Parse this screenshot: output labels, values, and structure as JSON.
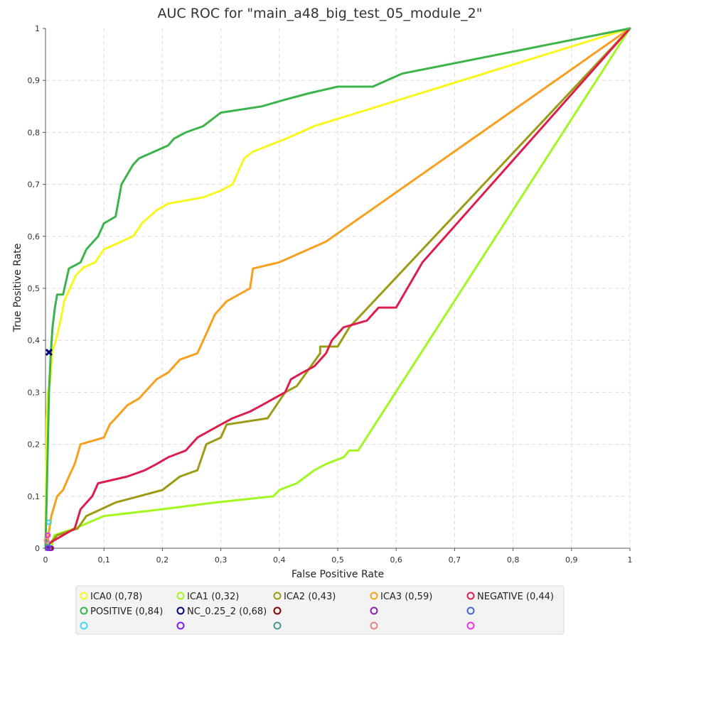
{
  "chart_data": {
    "type": "line",
    "title": "AUC ROC for \"main_a48_big_test_05_module_2\"",
    "xlabel": "False Positive Rate",
    "ylabel": "True Positive Rate",
    "xlim": [
      0,
      1
    ],
    "ylim": [
      0,
      1
    ],
    "grid": true,
    "legend_position": "bottom",
    "x_ticks": [
      "0",
      "0,1",
      "0,2",
      "0,3",
      "0,4",
      "0,5",
      "0,6",
      "0,7",
      "0,8",
      "0,9",
      "1"
    ],
    "y_ticks": [
      "0",
      "0,1",
      "0,2",
      "0,3",
      "0,4",
      "0,5",
      "0,6",
      "0,7",
      "0,8",
      "0,9",
      "1"
    ],
    "series": [
      {
        "name": "ICA0 (0,78)",
        "color": "#f7f71e",
        "points": [
          [
            0,
            0
          ],
          [
            0.002,
            0.25
          ],
          [
            0.004,
            0.3
          ],
          [
            0.008,
            0.32
          ],
          [
            0.012,
            0.38
          ],
          [
            0.018,
            0.4
          ],
          [
            0.022,
            0.42
          ],
          [
            0.028,
            0.45
          ],
          [
            0.032,
            0.475
          ],
          [
            0.042,
            0.5
          ],
          [
            0.052,
            0.525
          ],
          [
            0.065,
            0.54
          ],
          [
            0.085,
            0.55
          ],
          [
            0.1,
            0.575
          ],
          [
            0.15,
            0.6
          ],
          [
            0.165,
            0.625
          ],
          [
            0.19,
            0.65
          ],
          [
            0.21,
            0.663
          ],
          [
            0.27,
            0.675
          ],
          [
            0.3,
            0.688
          ],
          [
            0.32,
            0.7
          ],
          [
            0.34,
            0.75
          ],
          [
            0.355,
            0.763
          ],
          [
            0.41,
            0.787
          ],
          [
            0.46,
            0.812
          ],
          [
            1,
            1
          ]
        ]
      },
      {
        "name": "ICA1 (0,32)",
        "color": "#a2f71e",
        "points": [
          [
            0,
            0
          ],
          [
            0.01,
            0.0
          ],
          [
            0.015,
            0.025
          ],
          [
            0.05,
            0.038
          ],
          [
            0.1,
            0.062
          ],
          [
            0.2,
            0.075
          ],
          [
            0.29,
            0.088
          ],
          [
            0.39,
            0.1
          ],
          [
            0.4,
            0.112
          ],
          [
            0.43,
            0.125
          ],
          [
            0.46,
            0.15
          ],
          [
            0.48,
            0.162
          ],
          [
            0.51,
            0.175
          ],
          [
            0.52,
            0.188
          ],
          [
            0.535,
            0.188
          ],
          [
            1,
            1
          ]
        ]
      },
      {
        "name": "ICA2 (0,43)",
        "color": "#9c9c14",
        "points": [
          [
            0,
            0
          ],
          [
            0.02,
            0.025
          ],
          [
            0.055,
            0.038
          ],
          [
            0.07,
            0.062
          ],
          [
            0.12,
            0.088
          ],
          [
            0.16,
            0.1
          ],
          [
            0.2,
            0.112
          ],
          [
            0.23,
            0.138
          ],
          [
            0.26,
            0.15
          ],
          [
            0.275,
            0.2
          ],
          [
            0.3,
            0.213
          ],
          [
            0.31,
            0.238
          ],
          [
            0.38,
            0.25
          ],
          [
            0.41,
            0.3
          ],
          [
            0.43,
            0.312
          ],
          [
            0.47,
            0.375
          ],
          [
            0.47,
            0.388
          ],
          [
            0.5,
            0.388
          ],
          [
            0.52,
            0.425
          ],
          [
            1,
            1
          ]
        ]
      },
      {
        "name": "ICA3 (0,59)",
        "color": "#f7a01e",
        "points": [
          [
            0,
            0
          ],
          [
            0.005,
            0.025
          ],
          [
            0.01,
            0.062
          ],
          [
            0.02,
            0.1
          ],
          [
            0.03,
            0.112
          ],
          [
            0.04,
            0.138
          ],
          [
            0.05,
            0.162
          ],
          [
            0.06,
            0.2
          ],
          [
            0.1,
            0.213
          ],
          [
            0.11,
            0.238
          ],
          [
            0.12,
            0.25
          ],
          [
            0.14,
            0.275
          ],
          [
            0.16,
            0.288
          ],
          [
            0.19,
            0.325
          ],
          [
            0.21,
            0.338
          ],
          [
            0.23,
            0.363
          ],
          [
            0.26,
            0.375
          ],
          [
            0.28,
            0.425
          ],
          [
            0.29,
            0.45
          ],
          [
            0.31,
            0.475
          ],
          [
            0.35,
            0.5
          ],
          [
            0.355,
            0.538
          ],
          [
            0.4,
            0.55
          ],
          [
            0.45,
            0.575
          ],
          [
            0.48,
            0.59
          ],
          [
            1,
            1
          ]
        ]
      },
      {
        "name": "NEGATIVE (0,44)",
        "color": "#dc1e4e",
        "points": [
          [
            0,
            0
          ],
          [
            0.01,
            0.012
          ],
          [
            0.03,
            0.025
          ],
          [
            0.05,
            0.038
          ],
          [
            0.06,
            0.075
          ],
          [
            0.08,
            0.1
          ],
          [
            0.09,
            0.125
          ],
          [
            0.14,
            0.138
          ],
          [
            0.17,
            0.15
          ],
          [
            0.19,
            0.162
          ],
          [
            0.21,
            0.175
          ],
          [
            0.24,
            0.188
          ],
          [
            0.26,
            0.213
          ],
          [
            0.3,
            0.238
          ],
          [
            0.32,
            0.25
          ],
          [
            0.35,
            0.263
          ],
          [
            0.37,
            0.275
          ],
          [
            0.41,
            0.3
          ],
          [
            0.42,
            0.325
          ],
          [
            0.44,
            0.338
          ],
          [
            0.46,
            0.35
          ],
          [
            0.48,
            0.375
          ],
          [
            0.49,
            0.4
          ],
          [
            0.51,
            0.425
          ],
          [
            0.55,
            0.438
          ],
          [
            0.57,
            0.463
          ],
          [
            0.6,
            0.463
          ],
          [
            0.645,
            0.55
          ],
          [
            1,
            1
          ]
        ]
      },
      {
        "name": "POSITIVE (0,84)",
        "color": "#3cb44b",
        "points": [
          [
            0,
            0
          ],
          [
            0.003,
            0.15
          ],
          [
            0.006,
            0.3
          ],
          [
            0.009,
            0.375
          ],
          [
            0.012,
            0.425
          ],
          [
            0.016,
            0.463
          ],
          [
            0.02,
            0.488
          ],
          [
            0.03,
            0.488
          ],
          [
            0.04,
            0.538
          ],
          [
            0.06,
            0.55
          ],
          [
            0.07,
            0.575
          ],
          [
            0.09,
            0.6
          ],
          [
            0.1,
            0.625
          ],
          [
            0.12,
            0.638
          ],
          [
            0.13,
            0.7
          ],
          [
            0.15,
            0.738
          ],
          [
            0.16,
            0.75
          ],
          [
            0.21,
            0.775
          ],
          [
            0.22,
            0.788
          ],
          [
            0.24,
            0.8
          ],
          [
            0.27,
            0.812
          ],
          [
            0.3,
            0.838
          ],
          [
            0.37,
            0.85
          ],
          [
            0.41,
            0.863
          ],
          [
            0.45,
            0.875
          ],
          [
            0.5,
            0.888
          ],
          [
            0.56,
            0.888
          ],
          [
            0.61,
            0.913
          ],
          [
            1,
            1
          ]
        ]
      },
      {
        "name": "NC_0.25_2 (0,68)",
        "color": "#000080",
        "marker": "x",
        "points": [
          [
            0.006,
            0.377
          ]
        ]
      },
      {
        "name": "",
        "color": "#800000",
        "points": [
          [
            0.008,
            0.0
          ]
        ]
      },
      {
        "name": "",
        "color": "#911eb4",
        "points": [
          [
            0.01,
            0.0
          ]
        ]
      },
      {
        "name": "",
        "color": "#4363d8",
        "points": [
          [
            0.005,
            0.002
          ]
        ]
      },
      {
        "name": "",
        "color": "#42d4f4",
        "points": [
          [
            0.006,
            0.05
          ]
        ]
      },
      {
        "name": "",
        "color": "#7b1ef7",
        "points": [
          [
            0.004,
            0.0
          ]
        ]
      },
      {
        "name": "",
        "color": "#469990",
        "points": [
          [
            0.003,
            0.01
          ]
        ]
      },
      {
        "name": "",
        "color": "#f08080",
        "points": [
          [
            0.002,
            0.015
          ]
        ]
      },
      {
        "name": "",
        "color": "#f032e6",
        "points": [
          [
            0.004,
            0.025
          ]
        ]
      }
    ]
  }
}
